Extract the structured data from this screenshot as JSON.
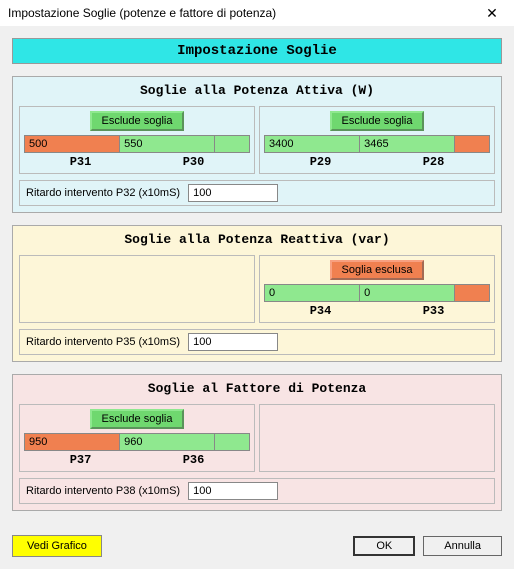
{
  "window": {
    "title": "Impostazione Soglie (potenze e fattore di potenza)",
    "close": "✕"
  },
  "header": "Impostazione Soglie",
  "groups": {
    "active": {
      "title": "Soglie alla Potenza Attiva (W)",
      "left": {
        "exclude": "Esclude soglia",
        "val1": "500",
        "val2": "550",
        "lab1": "P31",
        "lab2": "P30"
      },
      "right": {
        "exclude": "Esclude soglia",
        "val1": "3400",
        "val2": "3465",
        "lab1": "P29",
        "lab2": "P28"
      },
      "delay_label": "Ritardo intervento P32 (x10mS)",
      "delay_value": "100"
    },
    "reactive": {
      "title": "Soglie alla Potenza Reattiva (var)",
      "right": {
        "exclude": "Soglia esclusa",
        "val1": "0",
        "val2": "0",
        "lab1": "P34",
        "lab2": "P33"
      },
      "delay_label": "Ritardo intervento P35 (x10mS)",
      "delay_value": "100"
    },
    "pf": {
      "title": "Soglie al Fattore di Potenza",
      "left": {
        "exclude": "Esclude soglia",
        "val1": "950",
        "val2": "960",
        "lab1": "P37",
        "lab2": "P36"
      },
      "delay_label": "Ritardo intervento P38 (x10mS)",
      "delay_value": "100"
    }
  },
  "footer": {
    "vedi": "Vedi Grafico",
    "ok": "OK",
    "cancel": "Annulla"
  },
  "colors": {
    "orange": "#f08050",
    "green": "#8fe88f"
  }
}
